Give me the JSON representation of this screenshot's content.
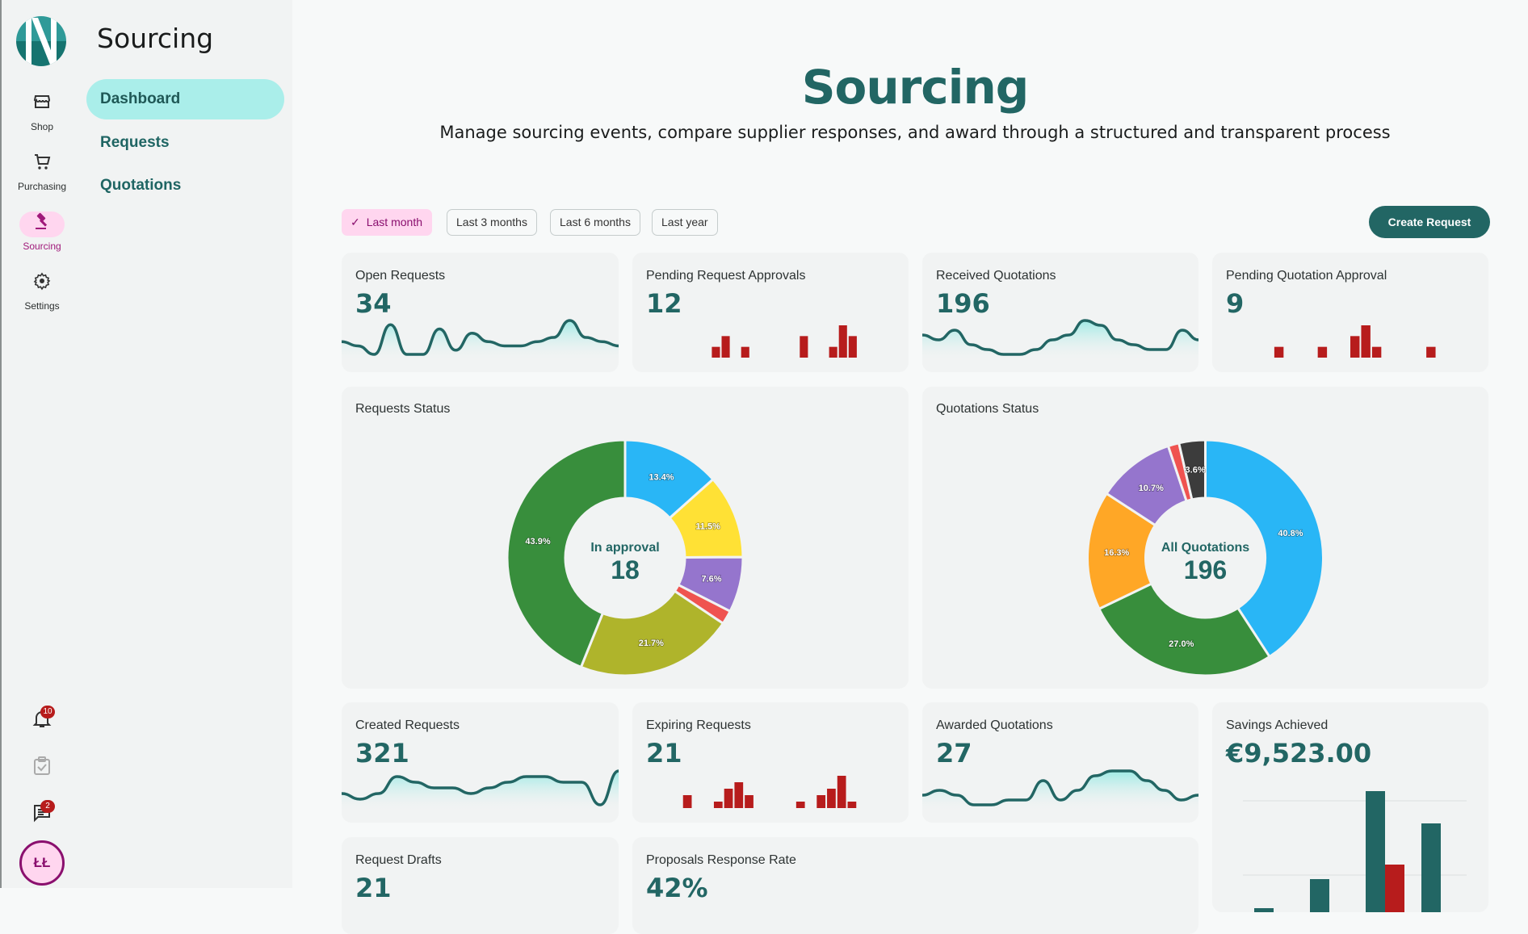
{
  "rail": {
    "items": [
      {
        "label": "Shop",
        "icon": "store-icon"
      },
      {
        "label": "Purchasing",
        "icon": "cart-icon"
      },
      {
        "label": "Sourcing",
        "icon": "gavel-icon",
        "active": true
      },
      {
        "label": "Settings",
        "icon": "gear-icon"
      }
    ],
    "notifications_badge": "10",
    "messages_badge": "2",
    "avatar_initials": "ŁŁ"
  },
  "subnav": {
    "title": "Sourcing",
    "items": [
      {
        "label": "Dashboard",
        "active": true
      },
      {
        "label": "Requests"
      },
      {
        "label": "Quotations"
      }
    ]
  },
  "header": {
    "title": "Sourcing",
    "subtitle": "Manage sourcing events, compare supplier responses, and award through a structured and transparent process"
  },
  "filters": {
    "options": [
      "Last month",
      "Last 3 months",
      "Last 6 months",
      "Last year"
    ],
    "selected": "Last month",
    "create_label": "Create Request"
  },
  "colors": {
    "brand": "#226664",
    "accent_pink": "#ffd6ef",
    "bar_red": "#b71c1c"
  },
  "kpis": [
    {
      "title": "Open Requests",
      "value": "34",
      "spark": "line",
      "series": [
        5,
        4,
        2,
        9,
        2,
        2,
        8,
        3,
        7,
        5,
        4,
        4,
        5,
        6,
        10,
        6,
        5,
        4
      ]
    },
    {
      "title": "Pending Request Approvals",
      "value": "12",
      "spark": "bar",
      "series": [
        0,
        0,
        0,
        0,
        1,
        2,
        0,
        1,
        0,
        0,
        0,
        0,
        0,
        2,
        0,
        0,
        1,
        3,
        2,
        0
      ]
    },
    {
      "title": "Received Quotations",
      "value": "196",
      "spark": "line",
      "series": [
        6,
        5,
        7,
        4,
        3,
        2,
        2,
        3,
        5,
        6,
        9,
        8,
        5,
        4,
        3,
        3,
        7,
        5
      ]
    },
    {
      "title": "Pending Quotation Approval",
      "value": "9",
      "spark": "bar",
      "series": [
        0,
        0,
        1,
        0,
        0,
        0,
        1,
        0,
        0,
        2,
        3,
        1,
        0,
        0,
        0,
        0,
        1,
        0
      ]
    },
    {
      "title": "Created Requests",
      "value": "321",
      "spark": "line",
      "series": [
        4,
        3,
        4,
        7,
        6,
        5,
        5,
        4,
        5,
        6,
        7,
        7,
        6,
        6,
        2,
        8
      ]
    },
    {
      "title": "Expiring Requests",
      "value": "21",
      "spark": "bar",
      "series": [
        0,
        2,
        0,
        0,
        1,
        3,
        4,
        2,
        0,
        0,
        0,
        0,
        1,
        0,
        2,
        3,
        5,
        1,
        0
      ]
    },
    {
      "title": "Awarded Quotations",
      "value": "27",
      "spark": "line",
      "series": [
        5,
        6,
        5,
        3,
        3,
        4,
        4,
        8,
        4,
        6,
        9,
        10,
        10,
        8,
        6,
        4,
        5
      ]
    },
    {
      "title": "Savings Achieved",
      "value": "€9,523.00",
      "spark": "grouped-bar",
      "series": [
        [
          1,
          0
        ],
        [
          2.2,
          0
        ],
        [
          6,
          2.8
        ],
        [
          4.5,
          0.8
        ]
      ]
    },
    {
      "title": "Request Drafts",
      "value": "21"
    },
    {
      "title": "Proposals Response Rate",
      "value": "42%"
    }
  ],
  "chart_data": [
    {
      "type": "pie",
      "title": "Requests Status",
      "center_label": "In approval",
      "center_value": "18",
      "slices": [
        {
          "value": 13.4,
          "label": "13.4%",
          "color": "#29b6f6"
        },
        {
          "value": 11.5,
          "label": "11.5%",
          "color": "#ffe135"
        },
        {
          "value": 7.6,
          "label": "7.6%",
          "color": "#9575cd"
        },
        {
          "value": 1.9,
          "label": "",
          "color": "#ef5350"
        },
        {
          "value": 21.7,
          "label": "21.7%",
          "color": "#afb42b"
        },
        {
          "value": 43.9,
          "label": "43.9%",
          "color": "#388e3c"
        }
      ]
    },
    {
      "type": "pie",
      "title": "Quotations Status",
      "center_label": "All Quotations",
      "center_value": "196",
      "slices": [
        {
          "value": 40.8,
          "label": "40.8%",
          "color": "#29b6f6"
        },
        {
          "value": 27.0,
          "label": "27.0%",
          "color": "#388e3c"
        },
        {
          "value": 16.3,
          "label": "16.3%",
          "color": "#ffa726"
        },
        {
          "value": 10.7,
          "label": "10.7%",
          "color": "#9575cd"
        },
        {
          "value": 1.5,
          "label": "",
          "color": "#ef5350"
        },
        {
          "value": 3.6,
          "label": "3.6%",
          "color": "#3c3c3c"
        }
      ]
    }
  ]
}
